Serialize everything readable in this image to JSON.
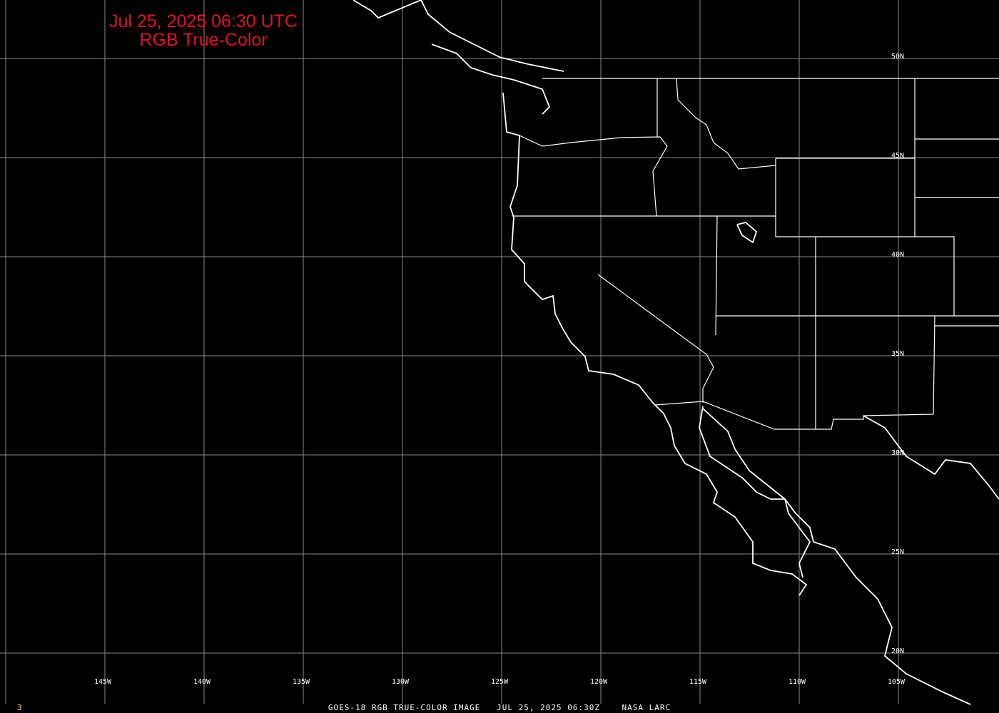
{
  "title": {
    "line1": "Jul 25, 2025 06:30 UTC",
    "line2": "RGB True-Color",
    "color": "#e0102a"
  },
  "grid": {
    "latitudes": [
      {
        "value": 50,
        "label": "50N"
      },
      {
        "value": 45,
        "label": "45N"
      },
      {
        "value": 40,
        "label": "40N"
      },
      {
        "value": 35,
        "label": "35N"
      },
      {
        "value": 30,
        "label": "30N"
      },
      {
        "value": 25,
        "label": "25N"
      },
      {
        "value": 20,
        "label": "20N"
      }
    ],
    "longitudes": [
      {
        "value": -145,
        "label": "145W"
      },
      {
        "value": -140,
        "label": "140W"
      },
      {
        "value": -135,
        "label": "135W"
      },
      {
        "value": -130,
        "label": "130W"
      },
      {
        "value": -125,
        "label": "125W"
      },
      {
        "value": -120,
        "label": "120W"
      },
      {
        "value": -115,
        "label": "115W"
      },
      {
        "value": -110,
        "label": "110W"
      },
      {
        "value": -105,
        "label": "105W"
      }
    ],
    "color": "#8a8a8a"
  },
  "footer": {
    "frame_number": "3",
    "caption": "GOES-18 RGB TRUE-COLOR IMAGE   JUL 25, 2025 06:30Z    NASA LARC"
  },
  "map": {
    "background": "#000000",
    "outline_color": "#ffffff"
  }
}
